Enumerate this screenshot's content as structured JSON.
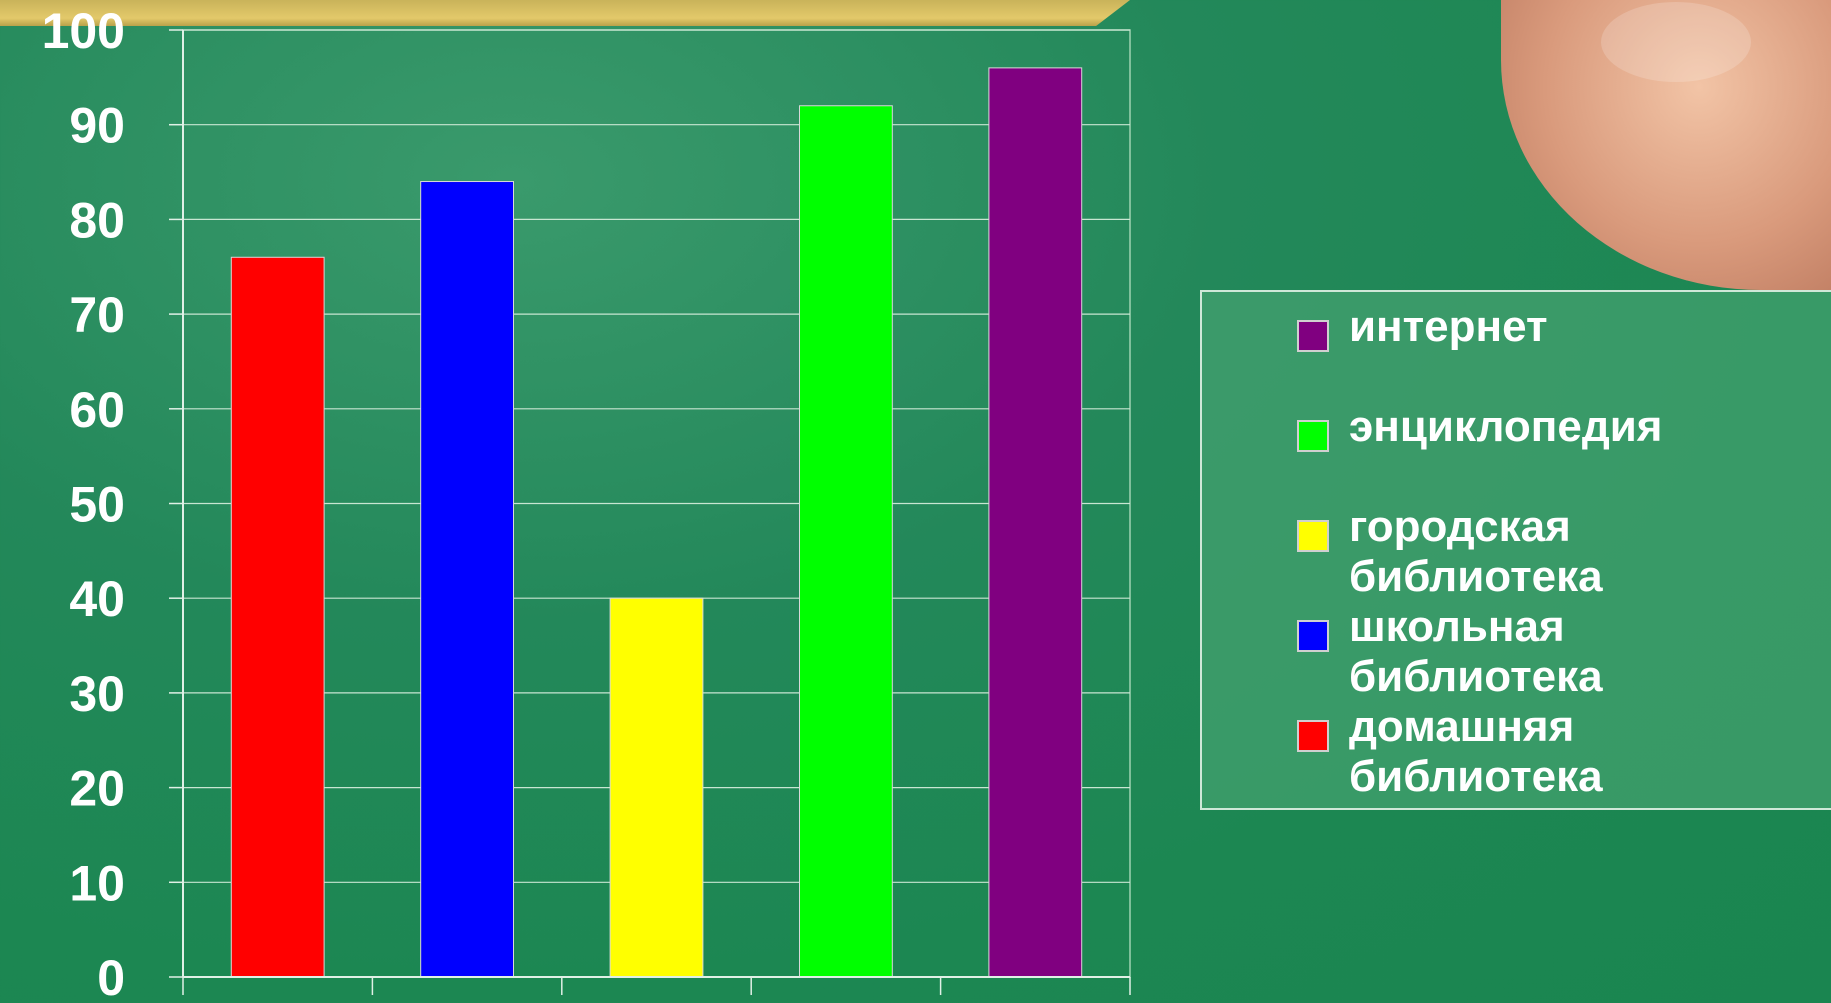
{
  "chart_data": {
    "type": "bar",
    "categories": [
      "домашняя библиотека",
      "школьная библиотека",
      "городская библиотека",
      "энциклопедия",
      "интернет"
    ],
    "values": [
      76,
      84,
      40,
      92,
      96
    ],
    "colors": [
      "#ff0000",
      "#0000ff",
      "#ffff00",
      "#00ff00",
      "#800080"
    ],
    "ylim": [
      0,
      100
    ],
    "yticks": [
      "0",
      "10",
      "20",
      "30",
      "40",
      "50",
      "60",
      "70",
      "80",
      "90",
      "100"
    ],
    "grid": true,
    "legend_placement": "right",
    "title": "",
    "xlabel": "",
    "ylabel": ""
  },
  "legend": {
    "items": [
      {
        "label": "интернет",
        "color": "#800080"
      },
      {
        "label": "энциклопедия",
        "color": "#00ff00"
      },
      {
        "label": "городская\nбиблиотека",
        "color": "#ffff00"
      },
      {
        "label": "школьная\nбиблиотека",
        "color": "#0000ff"
      },
      {
        "label": "домашняя\nбиблиотека",
        "color": "#ff0000"
      }
    ]
  }
}
